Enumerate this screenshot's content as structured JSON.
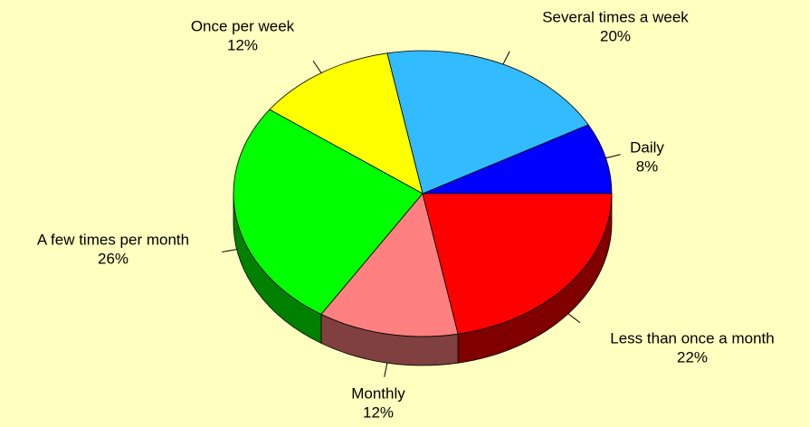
{
  "chart_data": {
    "type": "pie",
    "categories": [
      "Daily",
      "Several times a week",
      "Once per week",
      "A few times per month",
      "Monthly",
      "Less than once a month"
    ],
    "values": [
      8,
      20,
      12,
      26,
      12,
      22
    ],
    "value_labels": [
      "8%",
      "20%",
      "12%",
      "26%",
      "12%",
      "22%"
    ],
    "colors": [
      "#0000ff",
      "#33bbff",
      "#ffff00",
      "#00ff00",
      "#ff8080",
      "#ff0000"
    ],
    "side_colors": [
      "#000080",
      "#1a5e80",
      "#808000",
      "#008000",
      "#804040",
      "#800000"
    ]
  }
}
